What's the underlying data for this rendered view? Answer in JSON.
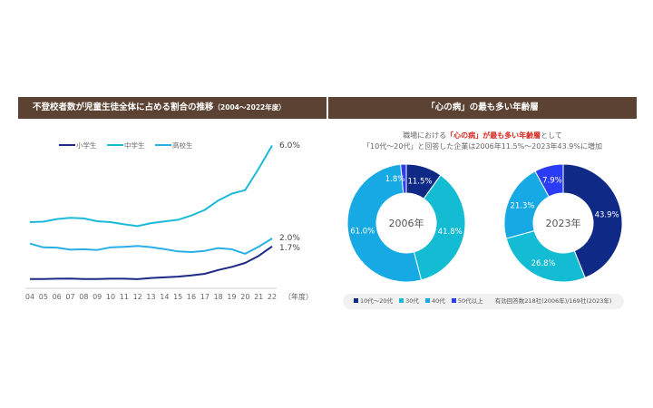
{
  "left_panel": {
    "title": "不登校者数が児童生徒全体に占める割合の推移",
    "title_suffix": "（2004〜2022年度）"
  },
  "right_panel": {
    "title": "「心の病」の最も多い年齢層",
    "subtitle_line1_pre": "職場における",
    "subtitle_line1_emph": "「心の病」が最も多い年齢層",
    "subtitle_line1_post": "として",
    "subtitle_line2": "「10代〜20代」と回答した企業は2006年11.5%〜2023年43.9%に増加",
    "note": "有効回答数218社(2006年)/169社(2023年)"
  },
  "colors": {
    "header_bg": "#5b4232",
    "elementary": "#1b2a86",
    "junior_high": "#1cbad8",
    "high_school": "#2aaee6",
    "age_10_20": "#0f2a86",
    "age_30": "#14bcd3",
    "age_40": "#17a9e3",
    "age_50plus": "#2b3cf5",
    "emphasis_red": "#d9261c"
  },
  "chart_data": [
    {
      "type": "line",
      "title": "不登校者数が児童生徒全体に占める割合の推移（2004〜2022年度）",
      "xlabel": "（年度）",
      "ylabel": "",
      "x": [
        "04",
        "05",
        "06",
        "07",
        "08",
        "09",
        "10",
        "11",
        "12",
        "13",
        "14",
        "15",
        "16",
        "17",
        "18",
        "19",
        "20",
        "21",
        "22"
      ],
      "ylim": [
        0,
        6.2
      ],
      "grid": false,
      "legend_position": "top-left",
      "series": [
        {
          "name": "小学生",
          "color_key": "elementary",
          "end_label": "1.7%",
          "values": [
            0.32,
            0.32,
            0.33,
            0.34,
            0.32,
            0.32,
            0.33,
            0.33,
            0.31,
            0.36,
            0.39,
            0.42,
            0.47,
            0.54,
            0.7,
            0.83,
            1.0,
            1.3,
            1.7
          ]
        },
        {
          "name": "中学生",
          "color_key": "junior_high",
          "end_label": "6.0%",
          "values": [
            2.73,
            2.75,
            2.86,
            2.91,
            2.89,
            2.77,
            2.73,
            2.64,
            2.56,
            2.69,
            2.76,
            2.83,
            3.01,
            3.25,
            3.65,
            3.94,
            4.09,
            5.0,
            5.98
          ]
        },
        {
          "name": "高校生",
          "color_key": "high_school",
          "end_label": "2.0%",
          "values": [
            1.82,
            1.66,
            1.65,
            1.56,
            1.58,
            1.55,
            1.66,
            1.68,
            1.72,
            1.67,
            1.59,
            1.49,
            1.46,
            1.51,
            1.63,
            1.58,
            1.39,
            1.69,
            2.04
          ]
        }
      ]
    },
    {
      "type": "pie",
      "title": "2006年",
      "center_label": "2006年",
      "categories": [
        "10代〜20代",
        "30代",
        "40代",
        "50代以上"
      ],
      "values": [
        11.5,
        41.8,
        61.0,
        1.8
      ],
      "labels": [
        "11.5%",
        "41.8%",
        "61.0%",
        "1.8%"
      ]
    },
    {
      "type": "pie",
      "title": "2023年",
      "center_label": "2023年",
      "categories": [
        "10代〜20代",
        "30代",
        "40代",
        "50代以上"
      ],
      "values": [
        43.9,
        26.8,
        21.3,
        7.9
      ],
      "labels": [
        "43.9%",
        "26.8%",
        "21.3%",
        "7.9%"
      ]
    }
  ],
  "legend": [
    {
      "label": "10代〜20代",
      "color_key": "age_10_20"
    },
    {
      "label": "30代",
      "color_key": "age_30"
    },
    {
      "label": "40代",
      "color_key": "age_40"
    },
    {
      "label": "50代以上",
      "color_key": "age_50plus"
    }
  ]
}
